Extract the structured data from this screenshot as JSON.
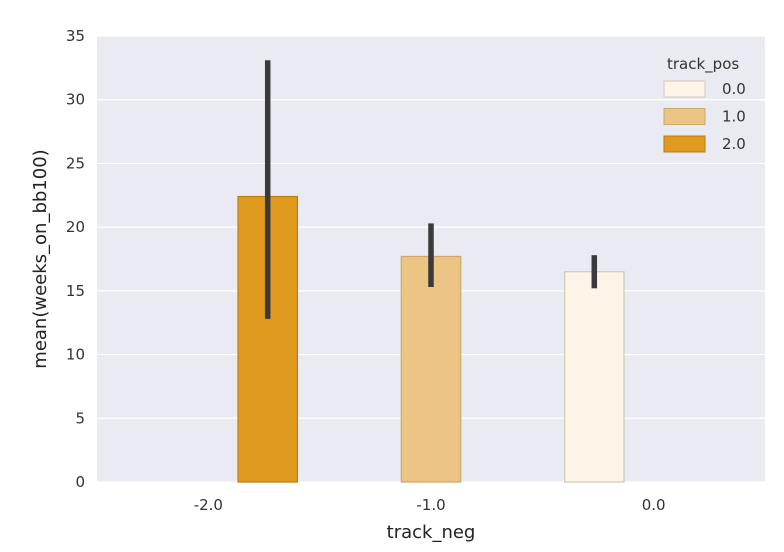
{
  "chart_data": {
    "type": "bar",
    "xlabel": "track_neg",
    "ylabel": "mean(weeks_on_bb100)",
    "categories": [
      "-2.0",
      "-1.0",
      "0.0"
    ],
    "ylim": [
      0,
      35
    ],
    "yticks": [
      0,
      5,
      10,
      15,
      20,
      25,
      30,
      35
    ],
    "grid": true,
    "legend": {
      "title": "track_pos",
      "placement": "top-right",
      "entries": [
        "0.0",
        "1.0",
        "2.0"
      ]
    },
    "series": [
      {
        "name": "0.0",
        "color": "#fbf4e7",
        "values": [
          null,
          null,
          16.5
        ],
        "error_low": [
          null,
          null,
          15.2
        ],
        "error_high": [
          null,
          null,
          17.8
        ]
      },
      {
        "name": "1.0",
        "color": "#ecc584",
        "values": [
          null,
          17.7,
          null
        ],
        "error_low": [
          null,
          15.3,
          null
        ],
        "error_high": [
          null,
          20.3,
          null
        ]
      },
      {
        "name": "2.0",
        "color": "#e09a20",
        "values": [
          22.4,
          null,
          null
        ],
        "error_low": [
          12.8,
          null,
          null
        ],
        "error_high": [
          33.1,
          null,
          null
        ]
      }
    ]
  }
}
